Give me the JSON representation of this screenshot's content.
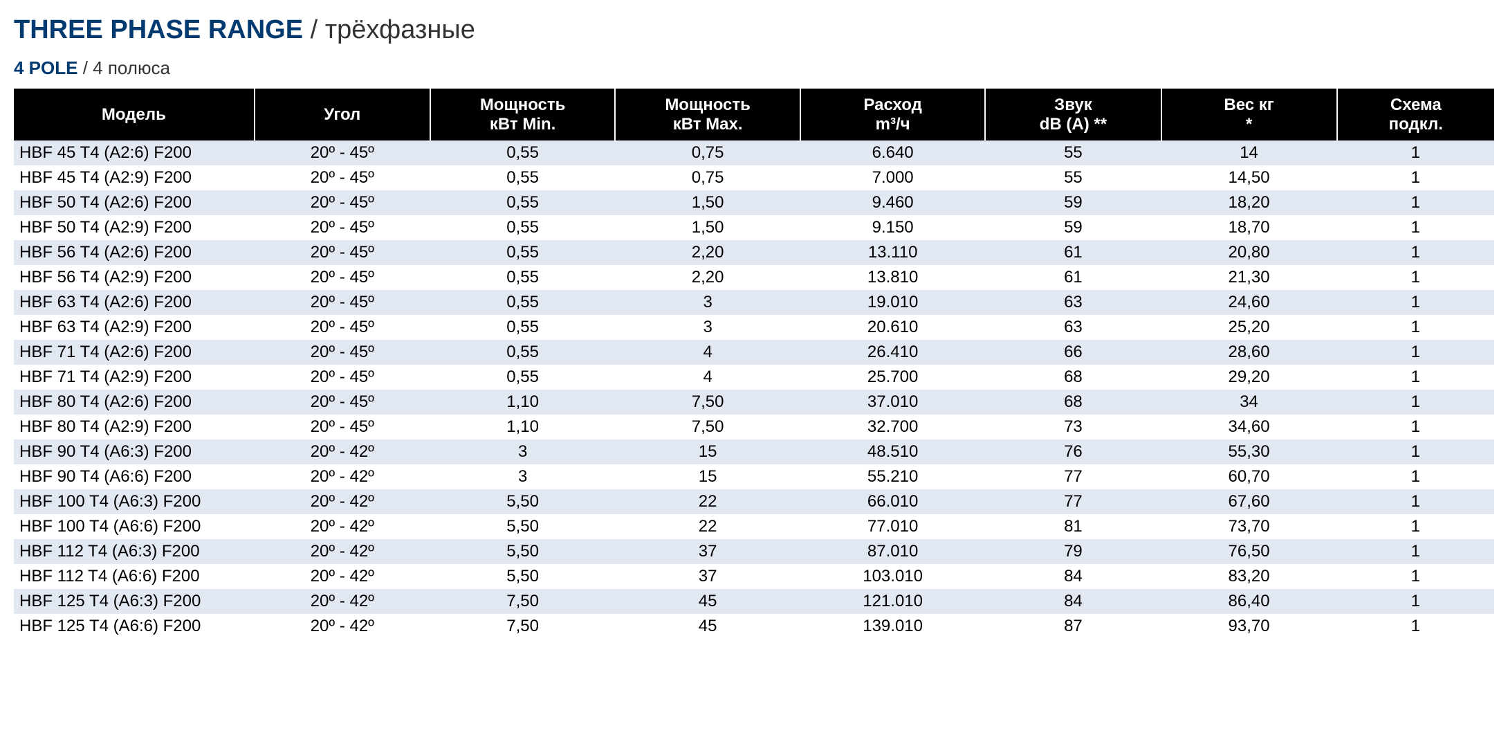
{
  "colors": {
    "title_accent": "#003a70",
    "title_secondary": "#333333",
    "thead_bg": "#000000",
    "thead_fg": "#ffffff",
    "row_odd_bg": "#e2e8f1",
    "row_even_bg": "#ffffff",
    "cell_fg": "#000000"
  },
  "typography": {
    "title_fontsize": 38,
    "subtitle_fontsize": 26,
    "header_fontsize": 24,
    "cell_fontsize": 24,
    "font_family": "Myriad Pro / Segoe UI / Arial"
  },
  "title": {
    "bold": "THREE PHASE RANGE",
    "sep": " / ",
    "light": "трёхфазные"
  },
  "subtitle": {
    "bold": "4 POLE",
    "sep": " / ",
    "light": "4 полюса"
  },
  "table": {
    "columns": [
      {
        "key": "model",
        "label_html": "Модель",
        "class": "col-model",
        "align": "left"
      },
      {
        "key": "angle",
        "label_html": "Угол",
        "class": "col-angle",
        "align": "center"
      },
      {
        "key": "pmin",
        "label_html": "Мощность<br>кВт Min.",
        "class": "col-pmin",
        "align": "center"
      },
      {
        "key": "pmax",
        "label_html": "Мощность<br>кВт Max.",
        "class": "col-pmax",
        "align": "center"
      },
      {
        "key": "flow",
        "label_html": "Расход<br>m³/ч",
        "class": "col-flow",
        "align": "center"
      },
      {
        "key": "db",
        "label_html": "Звук<br>dB (A) **",
        "class": "col-db",
        "align": "center"
      },
      {
        "key": "weight",
        "label_html": "Вес кг<br>*",
        "class": "col-wt",
        "align": "center"
      },
      {
        "key": "dia",
        "label_html": "Схема<br>подкл.",
        "class": "col-dia",
        "align": "center"
      }
    ],
    "rows": [
      {
        "model": "HBF 45 T4 (A2:6) F200",
        "angle": "20º - 45º",
        "pmin": "0,55",
        "pmax": "0,75",
        "flow": "6.640",
        "db": "55",
        "weight": "14",
        "dia": "1"
      },
      {
        "model": "HBF 45 T4 (A2:9) F200",
        "angle": "20º - 45º",
        "pmin": "0,55",
        "pmax": "0,75",
        "flow": "7.000",
        "db": "55",
        "weight": "14,50",
        "dia": "1"
      },
      {
        "model": "HBF 50 T4 (A2:6) F200",
        "angle": "20º - 45º",
        "pmin": "0,55",
        "pmax": "1,50",
        "flow": "9.460",
        "db": "59",
        "weight": "18,20",
        "dia": "1"
      },
      {
        "model": "HBF 50 T4 (A2:9) F200",
        "angle": "20º - 45º",
        "pmin": "0,55",
        "pmax": "1,50",
        "flow": "9.150",
        "db": "59",
        "weight": "18,70",
        "dia": "1"
      },
      {
        "model": "HBF 56 T4 (A2:6) F200",
        "angle": "20º - 45º",
        "pmin": "0,55",
        "pmax": "2,20",
        "flow": "13.110",
        "db": "61",
        "weight": "20,80",
        "dia": "1"
      },
      {
        "model": "HBF 56 T4 (A2:9) F200",
        "angle": "20º - 45º",
        "pmin": "0,55",
        "pmax": "2,20",
        "flow": "13.810",
        "db": "61",
        "weight": "21,30",
        "dia": "1"
      },
      {
        "model": "HBF 63 T4 (A2:6) F200",
        "angle": "20º - 45º",
        "pmin": "0,55",
        "pmax": "3",
        "flow": "19.010",
        "db": "63",
        "weight": "24,60",
        "dia": "1"
      },
      {
        "model": "HBF 63 T4 (A2:9) F200",
        "angle": "20º - 45º",
        "pmin": "0,55",
        "pmax": "3",
        "flow": "20.610",
        "db": "63",
        "weight": "25,20",
        "dia": "1"
      },
      {
        "model": "HBF 71 T4 (A2:6) F200",
        "angle": "20º - 45º",
        "pmin": "0,55",
        "pmax": "4",
        "flow": "26.410",
        "db": "66",
        "weight": "28,60",
        "dia": "1"
      },
      {
        "model": "HBF 71 T4 (A2:9) F200",
        "angle": "20º - 45º",
        "pmin": "0,55",
        "pmax": "4",
        "flow": "25.700",
        "db": "68",
        "weight": "29,20",
        "dia": "1"
      },
      {
        "model": "HBF 80 T4 (A2:6) F200",
        "angle": "20º - 45º",
        "pmin": "1,10",
        "pmax": "7,50",
        "flow": "37.010",
        "db": "68",
        "weight": "34",
        "dia": "1"
      },
      {
        "model": "HBF 80 T4 (A2:9) F200",
        "angle": "20º - 45º",
        "pmin": "1,10",
        "pmax": "7,50",
        "flow": "32.700",
        "db": "73",
        "weight": "34,60",
        "dia": "1"
      },
      {
        "model": "HBF 90 T4 (A6:3) F200",
        "angle": "20º - 42º",
        "pmin": "3",
        "pmax": "15",
        "flow": "48.510",
        "db": "76",
        "weight": "55,30",
        "dia": "1"
      },
      {
        "model": "HBF 90 T4 (A6:6) F200",
        "angle": "20º - 42º",
        "pmin": "3",
        "pmax": "15",
        "flow": "55.210",
        "db": "77",
        "weight": "60,70",
        "dia": "1"
      },
      {
        "model": "HBF 100 T4 (A6:3) F200",
        "angle": "20º - 42º",
        "pmin": "5,50",
        "pmax": "22",
        "flow": "66.010",
        "db": "77",
        "weight": "67,60",
        "dia": "1"
      },
      {
        "model": "HBF 100 T4 (A6:6) F200",
        "angle": "20º - 42º",
        "pmin": "5,50",
        "pmax": "22",
        "flow": "77.010",
        "db": "81",
        "weight": "73,70",
        "dia": "1"
      },
      {
        "model": "HBF 112 T4 (A6:3) F200",
        "angle": "20º - 42º",
        "pmin": "5,50",
        "pmax": "37",
        "flow": "87.010",
        "db": "79",
        "weight": "76,50",
        "dia": "1"
      },
      {
        "model": "HBF 112 T4 (A6:6) F200",
        "angle": "20º - 42º",
        "pmin": "5,50",
        "pmax": "37",
        "flow": "103.010",
        "db": "84",
        "weight": "83,20",
        "dia": "1"
      },
      {
        "model": "HBF 125 T4 (A6:3) F200",
        "angle": "20º - 42º",
        "pmin": "7,50",
        "pmax": "45",
        "flow": "121.010",
        "db": "84",
        "weight": "86,40",
        "dia": "1"
      },
      {
        "model": "HBF 125 T4 (A6:6) F200",
        "angle": "20º - 42º",
        "pmin": "7,50",
        "pmax": "45",
        "flow": "139.010",
        "db": "87",
        "weight": "93,70",
        "dia": "1"
      }
    ]
  }
}
